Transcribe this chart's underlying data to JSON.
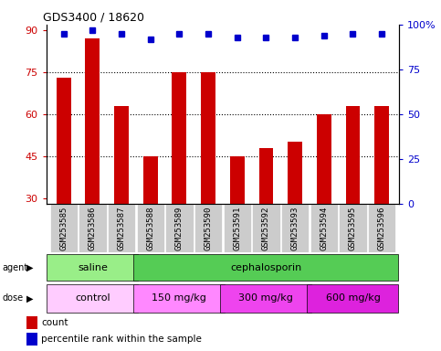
{
  "title": "GDS3400 / 18620",
  "samples": [
    "GSM253585",
    "GSM253586",
    "GSM253587",
    "GSM253588",
    "GSM253589",
    "GSM253590",
    "GSM253591",
    "GSM253592",
    "GSM253593",
    "GSM253594",
    "GSM253595",
    "GSM253596"
  ],
  "bar_values": [
    73,
    87,
    63,
    45,
    75,
    75,
    45,
    48,
    50,
    60,
    63,
    63
  ],
  "percentile_values": [
    95,
    97,
    95,
    92,
    95,
    95,
    93,
    93,
    93,
    94,
    95,
    95
  ],
  "bar_color": "#cc0000",
  "percentile_color": "#0000cc",
  "ylim_left": [
    28,
    92
  ],
  "ylim_right": [
    0,
    100
  ],
  "yticks_left": [
    30,
    45,
    60,
    75,
    90
  ],
  "yticks_right": [
    0,
    25,
    50,
    75,
    100
  ],
  "yticklabels_right": [
    "0",
    "25",
    "50",
    "75",
    "100%"
  ],
  "grid_values": [
    45,
    60,
    75
  ],
  "agent_labels": [
    {
      "text": "saline",
      "start": 0,
      "end": 3,
      "color": "#99ee88"
    },
    {
      "text": "cephalosporin",
      "start": 3,
      "end": 12,
      "color": "#55cc55"
    }
  ],
  "dose_labels": [
    {
      "text": "control",
      "start": 0,
      "end": 3,
      "color": "#ffaaff"
    },
    {
      "text": "150 mg/kg",
      "start": 3,
      "end": 6,
      "color": "#ff88ff"
    },
    {
      "text": "300 mg/kg",
      "start": 6,
      "end": 9,
      "color": "#ee44ee"
    },
    {
      "text": "600 mg/kg",
      "start": 9,
      "end": 12,
      "color": "#ee44ee"
    }
  ],
  "legend_count_color": "#cc0000",
  "legend_percentile_color": "#0000cc",
  "bar_bottom": 28,
  "tick_label_bg": "#cccccc"
}
